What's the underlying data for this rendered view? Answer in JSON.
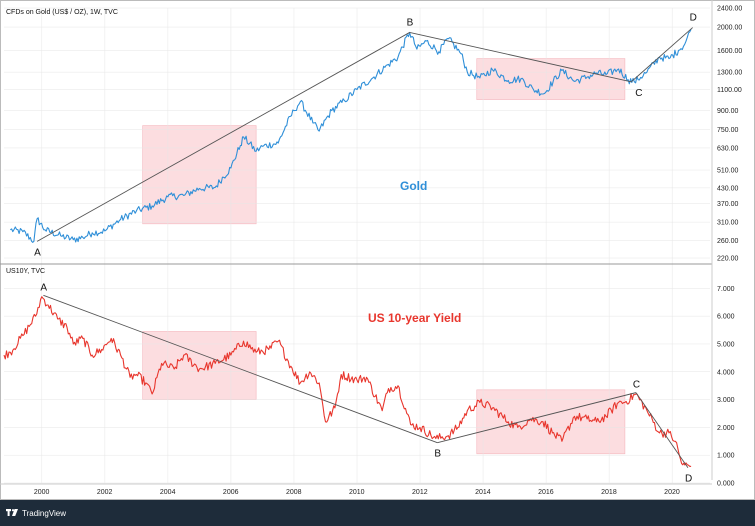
{
  "chart_data": [
    {
      "type": "line",
      "header": "CFDs on Gold (US$ / OZ), 1W, TVC",
      "label": "Gold",
      "scale": "log",
      "ylim": [
        220,
        2400
      ],
      "y_ticks": [
        "2400.00",
        "2000.00",
        "1600.00",
        "1300.00",
        "1100.00",
        "900.00",
        "750.00",
        "630.00",
        "510.00",
        "430.00",
        "370.00",
        "310.00",
        "260.00",
        "220.00"
      ],
      "y_tick_values": [
        2400,
        2000,
        1600,
        1300,
        1100,
        900,
        750,
        630,
        510,
        430,
        370,
        310,
        260,
        220
      ],
      "color": "#2f8fd8",
      "series": [
        {
          "x": [
            1999.0,
            1999.4,
            1999.75,
            1999.85,
            2000.1,
            2000.6,
            2001.0,
            2001.3,
            2001.6,
            2002.0,
            2002.5,
            2003.0,
            2003.5,
            2004.0,
            2004.5,
            2005.0,
            2005.5,
            2006.0,
            2006.3,
            2006.4,
            2006.8,
            2007.0,
            2007.5,
            2008.0,
            2008.2,
            2008.6,
            2008.8,
            2009.2,
            2009.6,
            2010.0,
            2010.5,
            2011.0,
            2011.3,
            2011.67,
            2011.9,
            2012.2,
            2012.6,
            2012.9,
            2013.3,
            2013.5,
            2013.9,
            2014.3,
            2014.8,
            2015.2,
            2015.6,
            2015.95,
            2016.5,
            2016.9,
            2017.3,
            2017.6,
            2017.9,
            2018.3,
            2018.6,
            2018.8,
            2019.2,
            2019.6,
            2019.9,
            2020.2,
            2020.4,
            2020.6
          ],
          "y": [
            288,
            283,
            258,
            320,
            288,
            272,
            262,
            268,
            280,
            285,
            318,
            345,
            362,
            395,
            400,
            428,
            432,
            520,
            645,
            700,
            610,
            640,
            660,
            900,
            980,
            800,
            740,
            900,
            990,
            1100,
            1230,
            1400,
            1500,
            1900,
            1620,
            1750,
            1580,
            1790,
            1550,
            1300,
            1230,
            1330,
            1200,
            1220,
            1100,
            1060,
            1320,
            1190,
            1240,
            1290,
            1270,
            1340,
            1210,
            1185,
            1300,
            1500,
            1480,
            1600,
            1700,
            1960
          ]
        }
      ],
      "annotations": [
        {
          "label": "A",
          "x": 1999.85,
          "y": 258
        },
        {
          "label": "B",
          "x": 2011.67,
          "y": 1900
        },
        {
          "label": "C",
          "x": 2018.7,
          "y": 1185
        },
        {
          "label": "D",
          "x": 2020.65,
          "y": 1990
        }
      ],
      "trendlines": [
        [
          "A",
          "B"
        ],
        [
          "B",
          "C"
        ],
        [
          "C",
          "D"
        ]
      ],
      "highlights": [
        {
          "x0": 2003.2,
          "x1": 2006.8,
          "y0": 305,
          "y1": 780
        },
        {
          "x0": 2013.8,
          "x1": 2018.5,
          "y0": 1000,
          "y1": 1480
        }
      ]
    },
    {
      "type": "line",
      "header": "US10Y, TVC",
      "label": "US 10-year Yield",
      "ylim": [
        0,
        7.3
      ],
      "y_ticks": [
        "7.000",
        "6.000",
        "5.000",
        "4.000",
        "3.000",
        "2.000",
        "1.000",
        "0.000"
      ],
      "y_tick_values": [
        7,
        6,
        5,
        4,
        3,
        2,
        1,
        0
      ],
      "color": "#e8362d",
      "series": [
        {
          "x": [
            1998.8,
            1999.0,
            1999.4,
            1999.8,
            2000.0,
            2000.2,
            2000.5,
            2000.8,
            2001.0,
            2001.3,
            2001.6,
            2001.9,
            2002.2,
            2002.5,
            2002.8,
            2003.0,
            2003.3,
            2003.5,
            2003.8,
            2004.2,
            2004.5,
            2005.0,
            2005.5,
            2006.0,
            2006.4,
            2006.8,
            2007.2,
            2007.5,
            2007.9,
            2008.2,
            2008.5,
            2008.8,
            2009.0,
            2009.3,
            2009.5,
            2010.0,
            2010.3,
            2010.8,
            2011.0,
            2011.3,
            2011.7,
            2012.0,
            2012.5,
            2012.9,
            2013.2,
            2013.5,
            2013.9,
            2014.3,
            2014.8,
            2015.1,
            2015.5,
            2015.9,
            2016.2,
            2016.5,
            2016.9,
            2017.3,
            2017.6,
            2017.9,
            2018.3,
            2018.5,
            2018.85,
            2019.2,
            2019.6,
            2019.9,
            2020.1,
            2020.3,
            2020.4,
            2020.6
          ],
          "y": [
            4.6,
            4.7,
            5.3,
            6.0,
            6.7,
            6.4,
            5.9,
            5.6,
            5.0,
            5.2,
            4.6,
            4.8,
            5.2,
            4.6,
            3.8,
            3.9,
            3.6,
            3.2,
            4.3,
            4.1,
            4.6,
            4.1,
            4.3,
            4.6,
            5.1,
            4.7,
            4.8,
            5.1,
            4.2,
            3.6,
            4.0,
            3.6,
            2.2,
            2.7,
            3.9,
            3.7,
            3.8,
            2.6,
            3.4,
            3.5,
            2.1,
            2.0,
            1.6,
            1.7,
            2.0,
            2.6,
            2.9,
            2.7,
            2.2,
            2.0,
            2.3,
            2.2,
            1.8,
            1.5,
            2.4,
            2.3,
            2.2,
            2.4,
            2.9,
            2.9,
            3.2,
            2.6,
            1.8,
            1.8,
            1.5,
            0.7,
            0.65,
            0.6
          ]
        }
      ],
      "annotations": [
        {
          "label": "A",
          "x": 2000.05,
          "y": 6.75
        },
        {
          "label": "B",
          "x": 2012.55,
          "y": 1.45
        },
        {
          "label": "C",
          "x": 2018.85,
          "y": 3.25
        },
        {
          "label": "D",
          "x": 2020.5,
          "y": 0.55
        }
      ],
      "trendlines": [
        [
          "A",
          "B"
        ],
        [
          "B",
          "C"
        ],
        [
          "C",
          "D"
        ]
      ],
      "highlights": [
        {
          "x0": 2003.2,
          "x1": 2006.8,
          "y0": 3.0,
          "y1": 5.45
        },
        {
          "x0": 2013.8,
          "x1": 2018.5,
          "y0": 1.05,
          "y1": 3.35
        }
      ]
    }
  ],
  "x_axis": {
    "xlim": [
      1998.8,
      2021.2
    ],
    "ticks": [
      "2000",
      "2002",
      "2004",
      "2006",
      "2008",
      "2010",
      "2012",
      "2014",
      "2016",
      "2018",
      "2020"
    ],
    "tick_values": [
      2000,
      2002,
      2004,
      2006,
      2008,
      2010,
      2012,
      2014,
      2016,
      2018,
      2020
    ]
  },
  "footer": {
    "brand": "TradingView"
  },
  "colors": {
    "highlight": "#fcdde0",
    "trendline": "#555555",
    "grid": "#e6e6e6"
  }
}
